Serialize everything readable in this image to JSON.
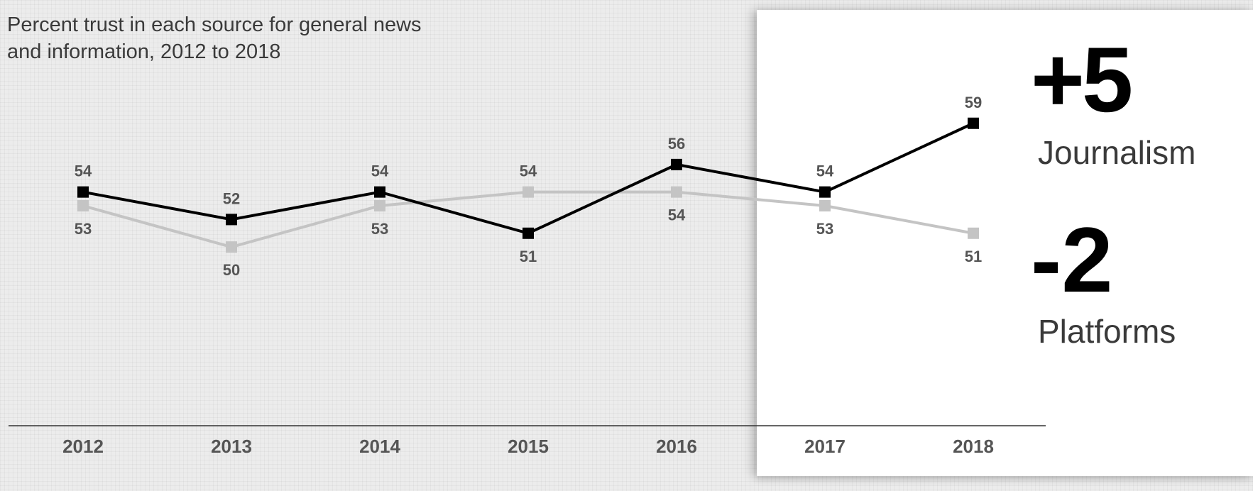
{
  "chart_data": {
    "type": "line",
    "title": "Percent trust in each source for general news and information, 2012 to 2018",
    "title_lines": [
      "Percent trust in each source for general news",
      "and information, 2012 to 2018"
    ],
    "categories": [
      "2012",
      "2013",
      "2014",
      "2015",
      "2016",
      "2017",
      "2018"
    ],
    "series": [
      {
        "name": "Journalism",
        "color": "#000000",
        "values": [
          54,
          52,
          54,
          51,
          56,
          54,
          59
        ],
        "label_position": [
          "above",
          "above",
          "above",
          "below",
          "above",
          "above",
          "above"
        ]
      },
      {
        "name": "Platforms",
        "color": "#c4c4c4",
        "values": [
          53,
          50,
          53,
          54,
          54,
          53,
          51
        ],
        "label_position": [
          "below",
          "below",
          "below",
          "above",
          "below",
          "below",
          "below"
        ]
      }
    ],
    "ylim": [
      45,
      61
    ],
    "grid": false,
    "xlabel": "",
    "ylabel": ""
  },
  "callouts": [
    {
      "change": "+5",
      "label": "Journalism"
    },
    {
      "change": "-2",
      "label": "Platforms"
    }
  ],
  "colors": {
    "background": "#ececec",
    "panel": "#ffffff",
    "journalism": "#000000",
    "platforms": "#c4c4c4",
    "label_text": "#555555"
  }
}
